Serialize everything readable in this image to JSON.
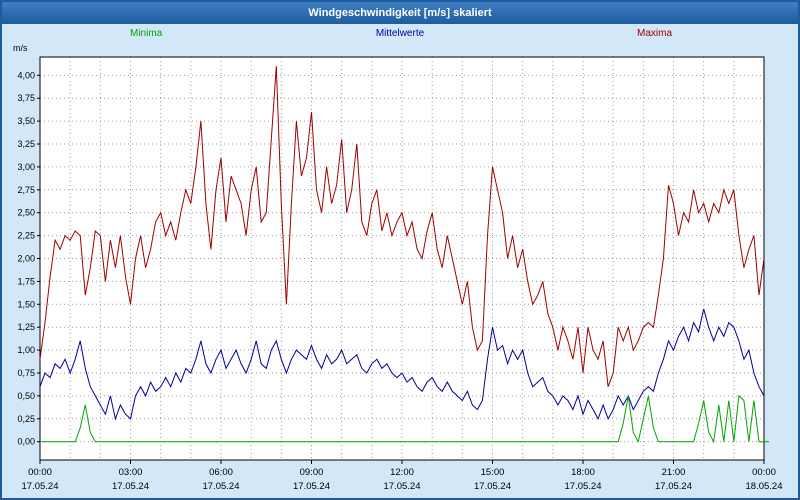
{
  "window": {
    "title": "Windgeschwindigkeit [m/s] skaliert"
  },
  "legend": [
    {
      "label": "Minima",
      "color": "#00a400"
    },
    {
      "label": "Mittelwerte",
      "color": "#0000a0"
    },
    {
      "label": "Maxima",
      "color": "#a00000"
    }
  ],
  "axis": {
    "unit_label": "m/s"
  },
  "chart_data": {
    "type": "line",
    "title": "Windgeschwindigkeit [m/s] skaliert",
    "ylabel": "m/s",
    "xlabel": "",
    "grid": true,
    "legend_position": "top",
    "ylim": [
      -0.2,
      4.2
    ],
    "yticks": [
      0,
      0.25,
      0.5,
      0.75,
      1.0,
      1.25,
      1.5,
      1.75,
      2.0,
      2.25,
      2.5,
      2.75,
      3.0,
      3.25,
      3.5,
      3.75,
      4.0
    ],
    "ytick_labels": [
      "0,00",
      "0,25",
      "0,50",
      "0,75",
      "1,00",
      "1,25",
      "1,50",
      "1,75",
      "2,00",
      "2,25",
      "2,50",
      "2,75",
      "3,00",
      "3,25",
      "3,50",
      "3,75",
      "4,00"
    ],
    "x_total_minutes": 1440,
    "interval_minutes": 10,
    "minor_gridline_every_minutes": 60,
    "xticks": [
      {
        "minutes": 0,
        "time": "00:00",
        "date": "17.05.24"
      },
      {
        "minutes": 180,
        "time": "03:00",
        "date": "17.05.24"
      },
      {
        "minutes": 360,
        "time": "06:00",
        "date": "17.05.24"
      },
      {
        "minutes": 540,
        "time": "09:00",
        "date": "17.05.24"
      },
      {
        "minutes": 720,
        "time": "12:00",
        "date": "17.05.24"
      },
      {
        "minutes": 900,
        "time": "15:00",
        "date": "17.05.24"
      },
      {
        "minutes": 1080,
        "time": "18:00",
        "date": "17.05.24"
      },
      {
        "minutes": 1260,
        "time": "21:00",
        "date": "17.05.24"
      },
      {
        "minutes": 1440,
        "time": "00:00",
        "date": "18.05.24"
      }
    ],
    "series": [
      {
        "name": "Maxima",
        "color": "#a00000",
        "values": [
          0.9,
          1.3,
          1.8,
          2.2,
          2.1,
          2.25,
          2.2,
          2.3,
          2.25,
          1.6,
          1.9,
          2.3,
          2.25,
          1.75,
          2.2,
          1.9,
          2.25,
          1.8,
          1.5,
          2.0,
          2.25,
          1.9,
          2.1,
          2.4,
          2.5,
          2.25,
          2.4,
          2.2,
          2.5,
          2.75,
          2.6,
          3.0,
          3.5,
          2.6,
          2.1,
          2.75,
          3.1,
          2.4,
          2.9,
          2.75,
          2.6,
          2.25,
          2.75,
          3.0,
          2.4,
          2.5,
          3.3,
          4.1,
          2.6,
          1.5,
          2.6,
          3.5,
          2.9,
          3.1,
          3.6,
          2.75,
          2.5,
          3.0,
          2.6,
          2.8,
          3.3,
          2.5,
          2.75,
          3.25,
          2.4,
          2.25,
          2.6,
          2.75,
          2.3,
          2.5,
          2.25,
          2.4,
          2.5,
          2.25,
          2.4,
          2.1,
          2.0,
          2.3,
          2.5,
          2.1,
          1.9,
          2.25,
          2.0,
          1.75,
          1.5,
          1.75,
          1.25,
          1.0,
          1.1,
          2.25,
          3.0,
          2.75,
          2.5,
          2.0,
          2.25,
          1.9,
          2.1,
          1.75,
          1.5,
          1.6,
          1.75,
          1.4,
          1.25,
          1.0,
          1.25,
          1.1,
          0.9,
          1.25,
          0.75,
          1.25,
          1.0,
          0.9,
          1.1,
          0.6,
          0.75,
          1.25,
          1.1,
          1.25,
          1.0,
          1.1,
          1.25,
          1.3,
          1.25,
          1.6,
          2.0,
          2.8,
          2.6,
          2.25,
          2.5,
          2.4,
          2.75,
          2.5,
          2.6,
          2.4,
          2.6,
          2.5,
          2.75,
          2.6,
          2.75,
          2.25,
          1.9,
          2.1,
          2.25,
          1.6,
          2.0
        ]
      },
      {
        "name": "Mittelwerte",
        "color": "#0000a0",
        "values": [
          0.6,
          0.75,
          0.7,
          0.85,
          0.8,
          0.9,
          0.75,
          0.9,
          1.1,
          0.8,
          0.6,
          0.5,
          0.4,
          0.3,
          0.5,
          0.25,
          0.4,
          0.3,
          0.25,
          0.5,
          0.6,
          0.5,
          0.65,
          0.55,
          0.6,
          0.7,
          0.6,
          0.75,
          0.65,
          0.8,
          0.75,
          0.9,
          1.1,
          0.85,
          0.75,
          0.9,
          1.0,
          0.8,
          0.9,
          1.0,
          0.85,
          0.75,
          0.9,
          1.1,
          0.85,
          0.8,
          1.0,
          1.1,
          0.9,
          0.75,
          0.9,
          1.0,
          0.95,
          0.9,
          1.05,
          0.9,
          0.8,
          0.95,
          0.85,
          0.9,
          1.0,
          0.85,
          0.9,
          0.95,
          0.8,
          0.75,
          0.85,
          0.9,
          0.8,
          0.85,
          0.75,
          0.7,
          0.75,
          0.65,
          0.7,
          0.6,
          0.55,
          0.65,
          0.7,
          0.6,
          0.55,
          0.65,
          0.55,
          0.5,
          0.45,
          0.55,
          0.4,
          0.35,
          0.45,
          0.9,
          1.25,
          1.0,
          1.05,
          0.85,
          1.0,
          0.9,
          1.0,
          0.75,
          0.6,
          0.65,
          0.7,
          0.55,
          0.5,
          0.4,
          0.5,
          0.45,
          0.35,
          0.5,
          0.3,
          0.45,
          0.35,
          0.25,
          0.4,
          0.25,
          0.35,
          0.5,
          0.4,
          0.5,
          0.35,
          0.45,
          0.55,
          0.6,
          0.55,
          0.75,
          0.9,
          1.1,
          1.0,
          1.15,
          1.25,
          1.1,
          1.3,
          1.2,
          1.45,
          1.25,
          1.1,
          1.25,
          1.15,
          1.3,
          1.25,
          1.1,
          0.9,
          1.0,
          0.75,
          0.6,
          0.5
        ]
      },
      {
        "name": "Minima",
        "color": "#00a400",
        "values": [
          0,
          0,
          0,
          0,
          0,
          0,
          0,
          0,
          0.15,
          0.4,
          0.1,
          0,
          0,
          0,
          0,
          0,
          0,
          0,
          0,
          0,
          0,
          0,
          0,
          0,
          0,
          0,
          0,
          0,
          0,
          0,
          0,
          0,
          0,
          0,
          0,
          0,
          0,
          0,
          0,
          0,
          0,
          0,
          0,
          0,
          0,
          0,
          0,
          0,
          0,
          0,
          0,
          0,
          0,
          0,
          0,
          0,
          0,
          0,
          0,
          0,
          0,
          0,
          0,
          0,
          0,
          0,
          0,
          0,
          0,
          0,
          0,
          0,
          0,
          0,
          0,
          0,
          0,
          0,
          0,
          0,
          0,
          0,
          0,
          0,
          0,
          0,
          0,
          0,
          0,
          0,
          0,
          0,
          0,
          0,
          0,
          0,
          0,
          0,
          0,
          0,
          0,
          0,
          0,
          0,
          0,
          0,
          0,
          0,
          0,
          0,
          0,
          0,
          0,
          0,
          0,
          0,
          0.2,
          0.5,
          0.1,
          0,
          0.25,
          0.5,
          0.15,
          0,
          0,
          0,
          0,
          0,
          0,
          0,
          0,
          0.2,
          0.45,
          0.1,
          0,
          0.4,
          0,
          0.45,
          0,
          0.5,
          0.45,
          0,
          0.45,
          0,
          0,
          0
        ]
      }
    ]
  }
}
